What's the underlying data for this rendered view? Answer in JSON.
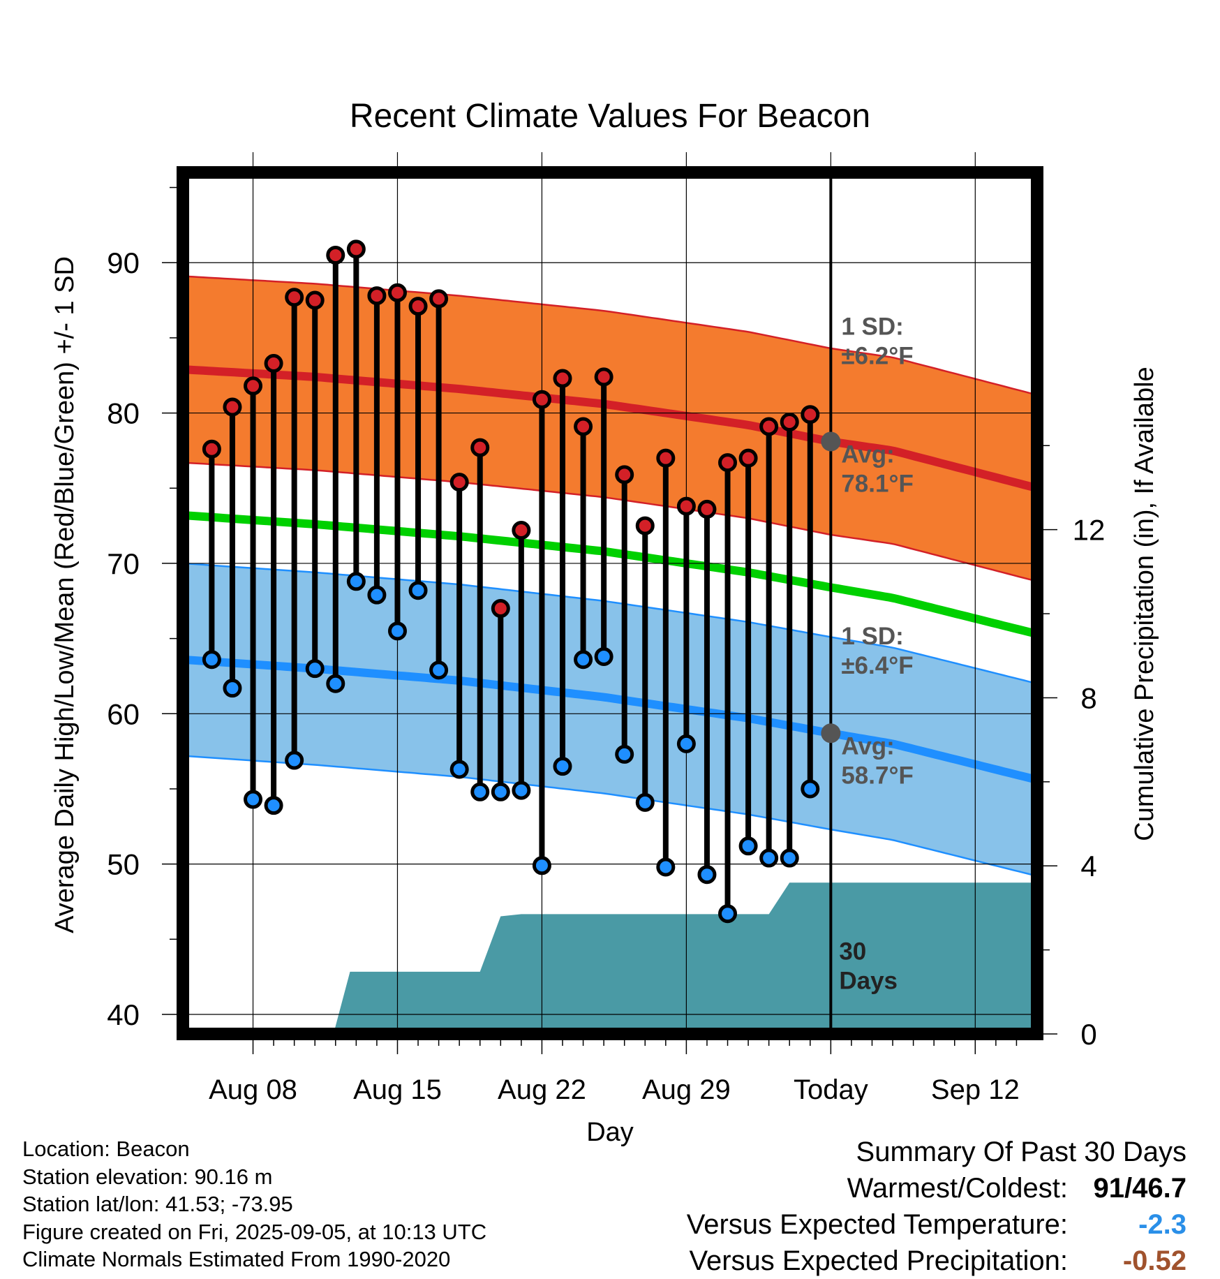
{
  "chart_data": {
    "type": "line",
    "title": "Recent Climate Values For Beacon",
    "xlabel": "Day",
    "ylabel": "Average Daily High/Low/Mean (Red/Blue/Green) +/- 1 SD",
    "y2label": "Cumulative Precipitation (in), If Available",
    "ylim": [
      38.7,
      96
    ],
    "y2lim": [
      0,
      20.5
    ],
    "yticks": [
      40,
      50,
      60,
      70,
      80,
      90
    ],
    "y2ticks": [
      0,
      4,
      8,
      12
    ],
    "xlim": [
      "2025-08-04.6",
      "2025-09-15.0"
    ],
    "xticks": [
      {
        "date": "2025-08-08",
        "label": "Aug 08"
      },
      {
        "date": "2025-08-15",
        "label": "Aug 15"
      },
      {
        "date": "2025-08-22",
        "label": "Aug 22"
      },
      {
        "date": "2025-08-29",
        "label": "Aug 29"
      },
      {
        "date": "2025-09-05",
        "label": "Today"
      },
      {
        "date": "2025-09-12",
        "label": "Sep 12"
      }
    ],
    "today": "2025-09-05",
    "period_label": "30\nDays",
    "series": [
      {
        "name": "Observed High",
        "color": "#c8202a",
        "dates": [
          "2025-08-06",
          "2025-08-07",
          "2025-08-08",
          "2025-08-09",
          "2025-08-10",
          "2025-08-11",
          "2025-08-12",
          "2025-08-13",
          "2025-08-14",
          "2025-08-15",
          "2025-08-16",
          "2025-08-17",
          "2025-08-18",
          "2025-08-19",
          "2025-08-20",
          "2025-08-21",
          "2025-08-22",
          "2025-08-23",
          "2025-08-24",
          "2025-08-25",
          "2025-08-26",
          "2025-08-27",
          "2025-08-28",
          "2025-08-29",
          "2025-08-30",
          "2025-08-31",
          "2025-09-01",
          "2025-09-02",
          "2025-09-03",
          "2025-09-04"
        ],
        "values": [
          77.6,
          80.4,
          81.8,
          83.3,
          87.7,
          87.5,
          90.5,
          90.9,
          87.8,
          88.0,
          87.1,
          87.6,
          75.4,
          77.7,
          67.0,
          72.2,
          80.9,
          82.3,
          79.1,
          82.4,
          75.9,
          72.5,
          77.0,
          73.8,
          73.6,
          76.7,
          77.0,
          79.1,
          79.4,
          79.9
        ]
      },
      {
        "name": "Observed Low",
        "color": "#1f8fff",
        "dates": [
          "2025-08-06",
          "2025-08-07",
          "2025-08-08",
          "2025-08-09",
          "2025-08-10",
          "2025-08-11",
          "2025-08-12",
          "2025-08-13",
          "2025-08-14",
          "2025-08-15",
          "2025-08-16",
          "2025-08-17",
          "2025-08-18",
          "2025-08-19",
          "2025-08-20",
          "2025-08-21",
          "2025-08-22",
          "2025-08-23",
          "2025-08-24",
          "2025-08-25",
          "2025-08-26",
          "2025-08-27",
          "2025-08-28",
          "2025-08-29",
          "2025-08-30",
          "2025-08-31",
          "2025-09-01",
          "2025-09-02",
          "2025-09-03",
          "2025-09-04"
        ],
        "values": [
          63.6,
          61.7,
          54.3,
          53.9,
          56.9,
          63.0,
          62.0,
          68.8,
          67.9,
          65.5,
          68.2,
          62.9,
          56.3,
          54.8,
          54.8,
          54.9,
          49.9,
          56.5,
          63.6,
          63.8,
          57.3,
          54.1,
          49.8,
          58.0,
          49.3,
          46.7,
          51.2,
          50.4,
          50.4,
          55.0
        ]
      },
      {
        "name": "Normal High",
        "color": "#c8202a",
        "dates": [
          "2025-08-04.6",
          "2025-08-11",
          "2025-08-18",
          "2025-08-25",
          "2025-09-01",
          "2025-09-05",
          "2025-09-08",
          "2025-09-15"
        ],
        "values": [
          82.9,
          82.4,
          81.6,
          80.6,
          79.2,
          78.1,
          77.5,
          75.0
        ]
      },
      {
        "name": "Normal Low",
        "color": "#1f8fff",
        "dates": [
          "2025-08-04.6",
          "2025-08-11",
          "2025-08-18",
          "2025-08-25",
          "2025-09-01",
          "2025-09-05",
          "2025-09-08",
          "2025-09-15"
        ],
        "values": [
          63.6,
          63.0,
          62.2,
          61.1,
          59.7,
          58.7,
          58.0,
          55.6
        ]
      },
      {
        "name": "Normal Mean",
        "color": "#00d000",
        "dates": [
          "2025-08-04.6",
          "2025-08-11",
          "2025-08-18",
          "2025-08-25",
          "2025-09-01",
          "2025-09-05",
          "2025-09-08",
          "2025-09-15"
        ],
        "values": [
          73.2,
          72.6,
          71.8,
          70.8,
          69.4,
          68.4,
          67.7,
          65.3
        ]
      },
      {
        "name": "Cumulative Precipitation",
        "color": "#4a9aa5",
        "dates": [
          "2025-08-04.6",
          "2025-08-11.9",
          "2025-08-12.7",
          "2025-08-19",
          "2025-08-20",
          "2025-08-21",
          "2025-09-02",
          "2025-09-03",
          "2025-09-15"
        ],
        "values": [
          0,
          0,
          1.48,
          1.48,
          2.8,
          2.85,
          2.85,
          3.6,
          3.6
        ]
      }
    ],
    "high_sd_f": 6.2,
    "low_sd_f": 6.4,
    "annotations": {
      "high_sd_label": "1 SD:\n±6.2°F",
      "high_avg_label": "Avg:\n78.1°F",
      "low_sd_label": "1 SD:\n±6.4°F",
      "low_avg_label": "Avg:\n58.7°F"
    },
    "colors": {
      "high_band": "#f47b2e",
      "high_line": "#d32027",
      "low_band": "#88c2ea",
      "low_line": "#1f8fff",
      "mean_line": "#00d000",
      "precip": "#4a9aa5",
      "frame": "#000000",
      "grid": "#000000",
      "annotation": "#555555"
    },
    "grid": true,
    "legend": "none"
  },
  "footer": {
    "location": "Location: Beacon",
    "elevation": "Station elevation: 90.16 m",
    "latlon": "Station lat/lon: 41.53; -73.95",
    "created": "Figure created on Fri, 2025-09-05, at 10:13 UTC",
    "normals": "Climate Normals Estimated From 1990-2020"
  },
  "summary": {
    "title": "Summary Of Past 30 Days",
    "warmest_label": "Warmest/Coldest:",
    "warmest": "91",
    "slash": "/",
    "coldest": "46.7",
    "temp_label": "Versus Expected Temperature:",
    "temp_value": "-2.3",
    "temp_color": "#2a8fe8",
    "precip_label": "Versus Expected Precipitation:",
    "precip_value": "-0.52",
    "precip_color": "#a0522d"
  }
}
